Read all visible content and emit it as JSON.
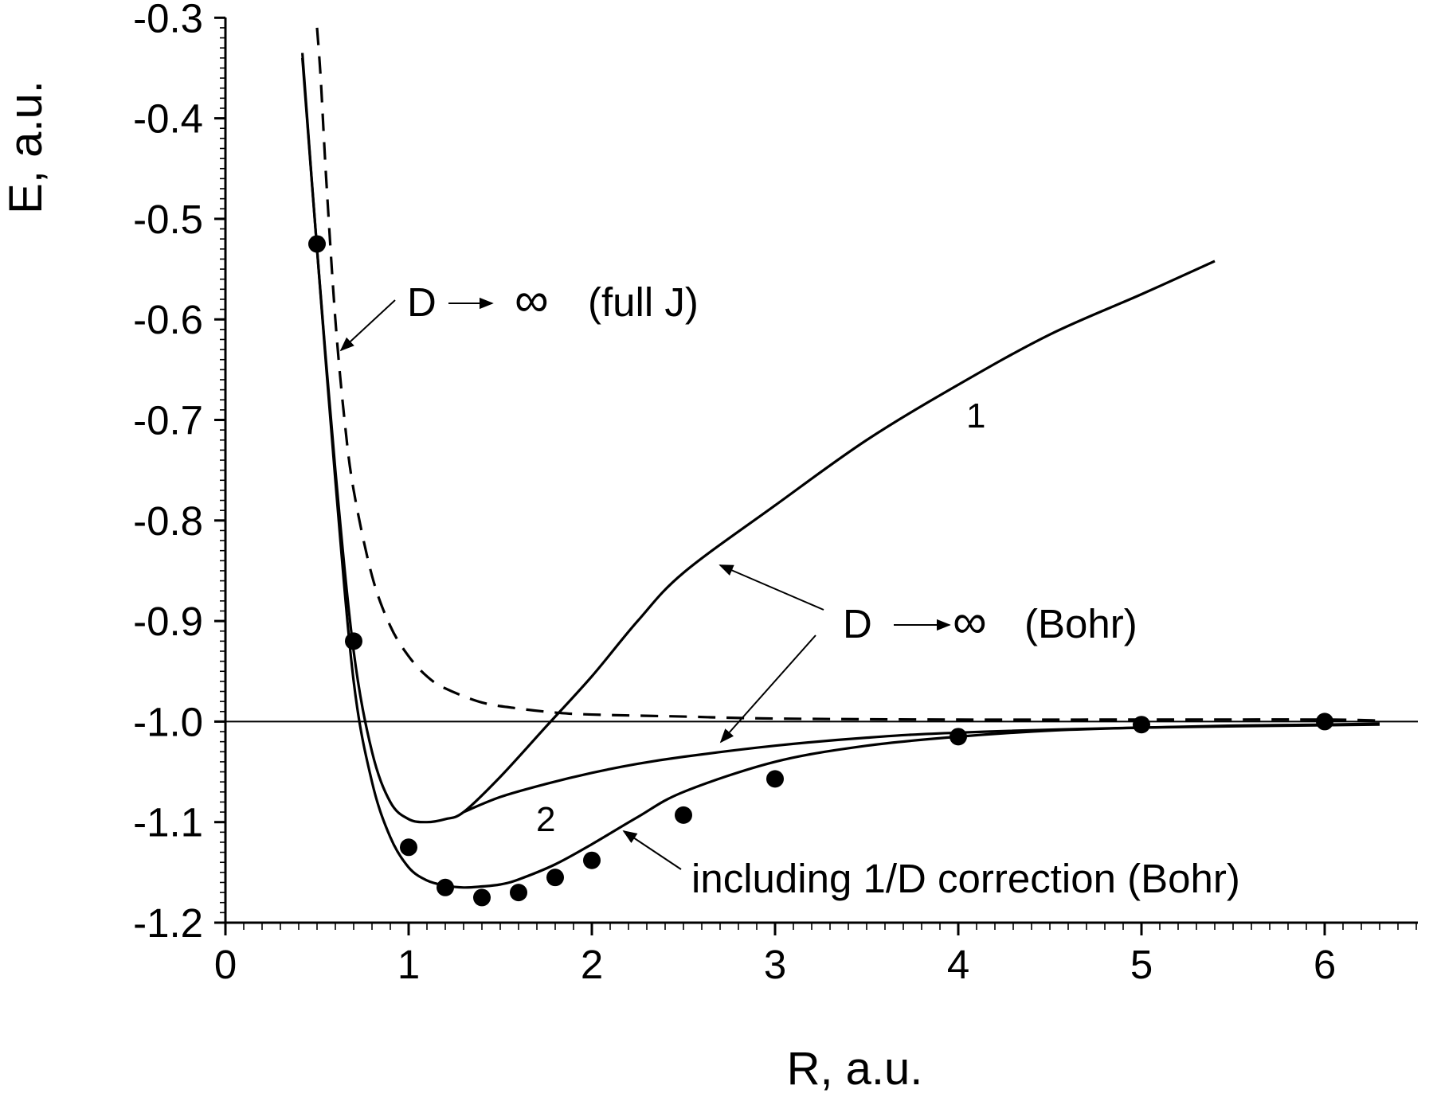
{
  "chart_data": {
    "type": "line",
    "title": "",
    "xlabel": "R, a.u.",
    "ylabel": "E, a.u.",
    "xlim": [
      0,
      6.5
    ],
    "ylim": [
      -1.2,
      -0.3
    ],
    "x_ticks": [
      "0",
      "1",
      "2",
      "3",
      "4",
      "5",
      "6"
    ],
    "y_ticks": [
      "-0.3",
      "-0.4",
      "-0.5",
      "-0.6",
      "-0.7",
      "-0.8",
      "-0.9",
      "-1.0",
      "-1.1",
      "-1.2"
    ],
    "y_tick_values": [
      -0.3,
      -0.4,
      -0.5,
      -0.6,
      -0.7,
      -0.8,
      -0.9,
      -1.0,
      -1.1,
      -1.2
    ],
    "x_tick_values": [
      0,
      1,
      2,
      3,
      4,
      5,
      6
    ],
    "reference_line": {
      "y": -1.0
    },
    "grid": false,
    "legend": "none",
    "series": [
      {
        "style": "solid",
        "x": [
          0.42,
          0.5,
          0.6,
          0.7,
          0.8,
          0.9,
          1.0,
          1.1,
          1.2,
          1.3,
          1.5,
          1.75,
          2.0,
          2.25,
          2.5,
          3.0,
          3.5,
          4.0,
          4.5,
          5.0,
          5.4
        ],
        "y": [
          -0.335,
          -0.53,
          -0.75,
          -0.93,
          -1.03,
          -1.08,
          -1.097,
          -1.1,
          -1.097,
          -1.09,
          -1.055,
          -1.005,
          -0.955,
          -0.9,
          -0.852,
          -0.785,
          -0.72,
          -0.665,
          -0.615,
          -0.575,
          -0.542
        ]
      },
      {
        "style": "solid",
        "x": [
          1.3,
          1.5,
          1.75,
          2.0,
          2.25,
          2.5,
          3.0,
          3.5,
          4.0,
          5.0,
          6.3
        ],
        "y": [
          -1.09,
          -1.075,
          -1.062,
          -1.051,
          -1.042,
          -1.035,
          -1.024,
          -1.016,
          -1.011,
          -1.006,
          -1.003
        ]
      },
      {
        "style": "solid",
        "x": [
          0.42,
          0.5,
          0.6,
          0.7,
          0.8,
          0.9,
          1.0,
          1.1,
          1.2,
          1.3,
          1.4,
          1.5,
          1.6,
          1.8,
          2.0,
          2.25,
          2.5,
          3.0,
          3.5,
          4.0,
          4.5,
          5.0,
          5.5,
          6.0,
          6.3
        ],
        "y": [
          -0.34,
          -0.53,
          -0.76,
          -0.96,
          -1.06,
          -1.115,
          -1.145,
          -1.158,
          -1.163,
          -1.165,
          -1.164,
          -1.162,
          -1.157,
          -1.142,
          -1.122,
          -1.095,
          -1.07,
          -1.04,
          -1.024,
          -1.015,
          -1.009,
          -1.006,
          -1.004,
          -1.003,
          -1.002
        ]
      },
      {
        "style": "dashed",
        "x": [
          0.5,
          0.52,
          0.55,
          0.6,
          0.65,
          0.7,
          0.8,
          0.9,
          1.0,
          1.1,
          1.2,
          1.4,
          1.6,
          1.8,
          2.0,
          2.5,
          3.0,
          4.0,
          5.0,
          6.0,
          6.3
        ],
        "y": [
          -0.31,
          -0.36,
          -0.46,
          -0.6,
          -0.7,
          -0.77,
          -0.855,
          -0.905,
          -0.935,
          -0.955,
          -0.967,
          -0.981,
          -0.987,
          -0.991,
          -0.993,
          -0.995,
          -0.997,
          -0.998,
          -0.998,
          -0.998,
          -0.999
        ]
      },
      {
        "style": "markers",
        "x": [
          0.5,
          0.7,
          1.0,
          1.2,
          1.4,
          1.6,
          1.8,
          2.0,
          2.5,
          3.0,
          4.0,
          5.0,
          6.0
        ],
        "y": [
          -0.525,
          -0.92,
          -1.125,
          -1.165,
          -1.175,
          -1.17,
          -1.155,
          -1.138,
          -1.093,
          -1.057,
          -1.015,
          -1.003,
          -1.0
        ]
      }
    ],
    "annotations": [
      {
        "text": "D",
        "arrow": "→",
        "symbol": "∞",
        "suffix": "(full J)",
        "points_to": {
          "x": 0.6,
          "y": -0.63
        }
      },
      {
        "text": "D",
        "arrow": "→",
        "symbol": "∞",
        "suffix": "(Bohr)",
        "points_to": [
          {
            "x": 2.7,
            "y": -0.84
          },
          {
            "x": 2.75,
            "y": -1.025
          }
        ]
      },
      {
        "text": "including 1/D correction (Bohr)",
        "points_to": {
          "x": 2.2,
          "y": -1.1
        }
      }
    ],
    "curve_labels": [
      "1",
      "2"
    ]
  }
}
